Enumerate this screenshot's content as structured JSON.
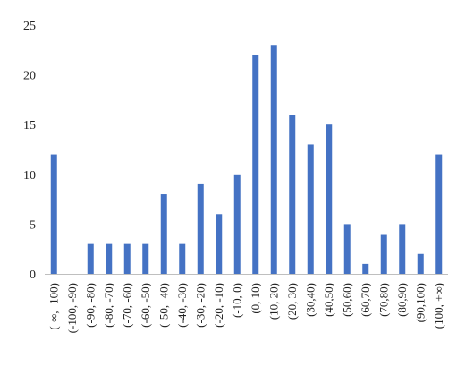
{
  "chart_data": {
    "type": "bar",
    "categories": [
      "(-∞, -100)",
      "(-100, -90)",
      "(-90, -80)",
      "(-80, -70)",
      "(-70, -60)",
      "(-60, -50)",
      "(-50, -40)",
      "(-40, -30)",
      "(-30, -20)",
      "(-20, -10)",
      "(-10, 0)",
      "(0, 10)",
      "(10, 20)",
      "(20, 30)",
      "(30,40)",
      "(40,50)",
      "(50,60)",
      "(60,70)",
      "(70,80)",
      "(80,90)",
      "(90,100)",
      "(100, +∞)"
    ],
    "values": [
      12,
      0,
      3,
      3,
      3,
      3,
      8,
      3,
      9,
      6,
      10,
      22,
      23,
      16,
      13,
      15,
      5,
      1,
      4,
      5,
      2,
      12
    ],
    "title": "",
    "xlabel": "",
    "ylabel": "",
    "ylim": [
      0,
      25
    ],
    "yticks": [
      0,
      5,
      10,
      15,
      20,
      25
    ],
    "grid": false,
    "legend": "none",
    "bar_color": "#4472C4",
    "axis_color": "#bfbfbf"
  }
}
